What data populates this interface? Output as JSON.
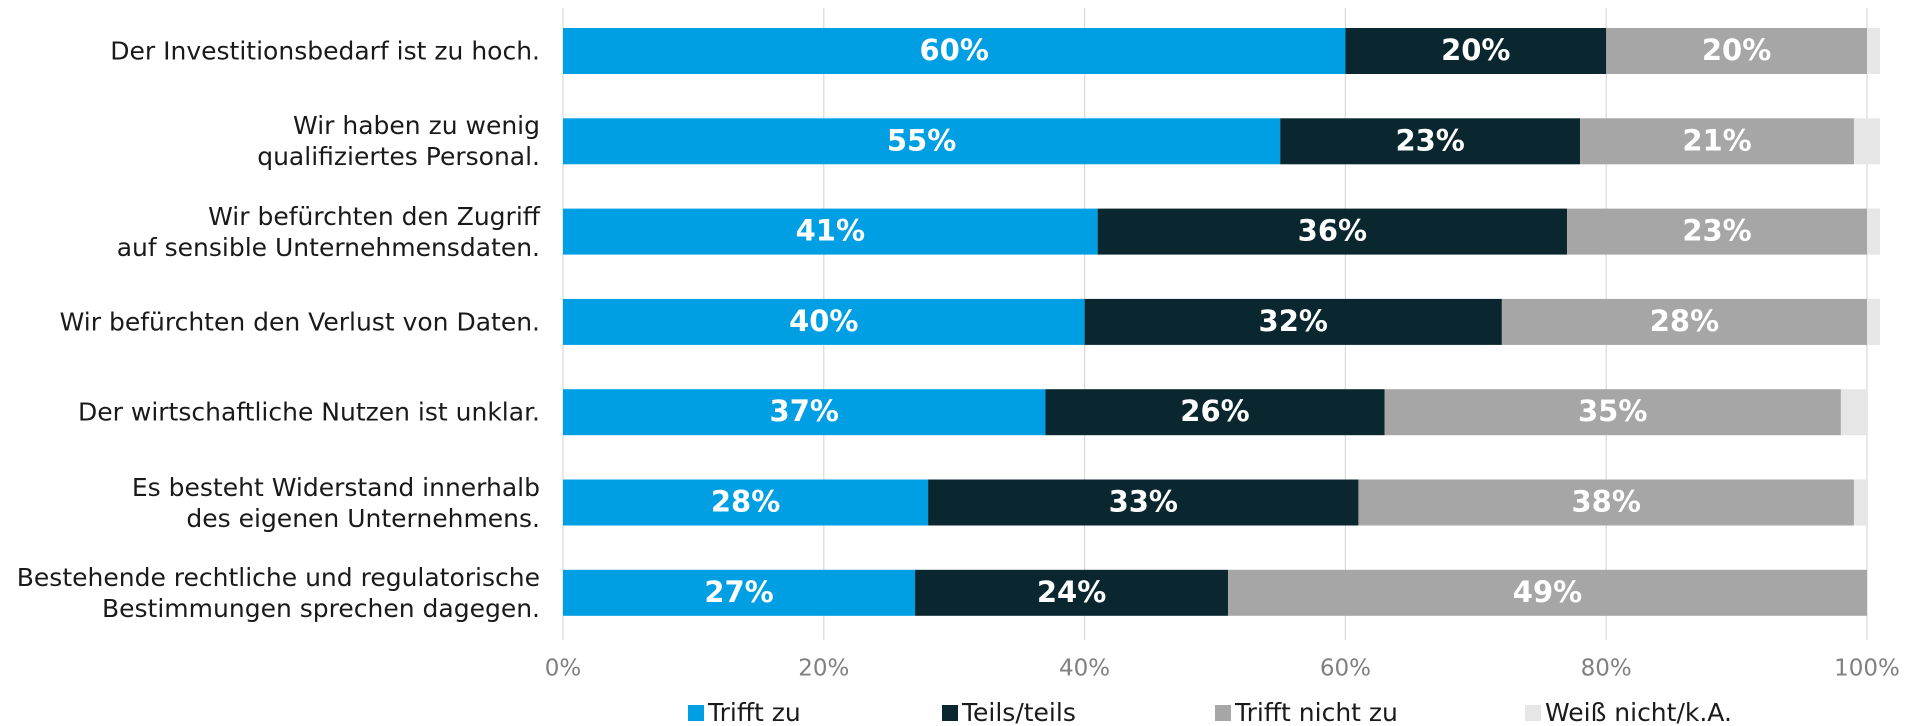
{
  "chart_data": {
    "type": "stacked-bar",
    "categories": [
      "Der Investitionsbedarf ist zu hoch.",
      "Wir haben zu wenig\nqualifiziertes Personal.",
      "Wir befürchten den Zugriff\nauf sensible Unternehmensdaten.",
      "Wir befürchten den Verlust von Daten.",
      "Der wirtschaftliche Nutzen ist unklar.",
      "Es besteht Widerstand innerhalb\ndes eigenen Unternehmens.",
      "Bestehende rechtliche und regulatorische\nBestimmungen sprechen dagegen."
    ],
    "series": [
      {
        "name": "Trifft zu",
        "color": "#009fe3",
        "values": [
          60,
          55,
          41,
          40,
          37,
          28,
          27
        ],
        "value_labels": [
          "60%",
          "55%",
          "41%",
          "40%",
          "37%",
          "28%",
          "27%"
        ]
      },
      {
        "name": "Teils/teils",
        "color": "#0a2730",
        "values": [
          20,
          23,
          36,
          32,
          26,
          33,
          24
        ],
        "value_labels": [
          "20%",
          "23%",
          "36%",
          "32%",
          "26%",
          "33%",
          "24%"
        ]
      },
      {
        "name": "Trifft nicht zu",
        "color": "#a6a6a6",
        "values": [
          20,
          21,
          23,
          28,
          35,
          38,
          49
        ],
        "value_labels": [
          "20%",
          "21%",
          "23%",
          "28%",
          "35%",
          "38%",
          "49%"
        ]
      },
      {
        "name": "Weiß nicht/k.A.",
        "color": "#e6e6e6",
        "values": [
          1,
          2,
          1,
          1,
          2,
          1,
          0
        ]
      }
    ],
    "xlim": [
      0,
      100
    ],
    "xticks": [
      {
        "value": 0,
        "label": "0%"
      },
      {
        "value": 20,
        "label": "20%"
      },
      {
        "value": 40,
        "label": "40%"
      },
      {
        "value": 60,
        "label": "60%"
      },
      {
        "value": 80,
        "label": "80%"
      },
      {
        "value": 100,
        "label": "100%"
      }
    ],
    "grid": true,
    "legend": "bottom"
  }
}
